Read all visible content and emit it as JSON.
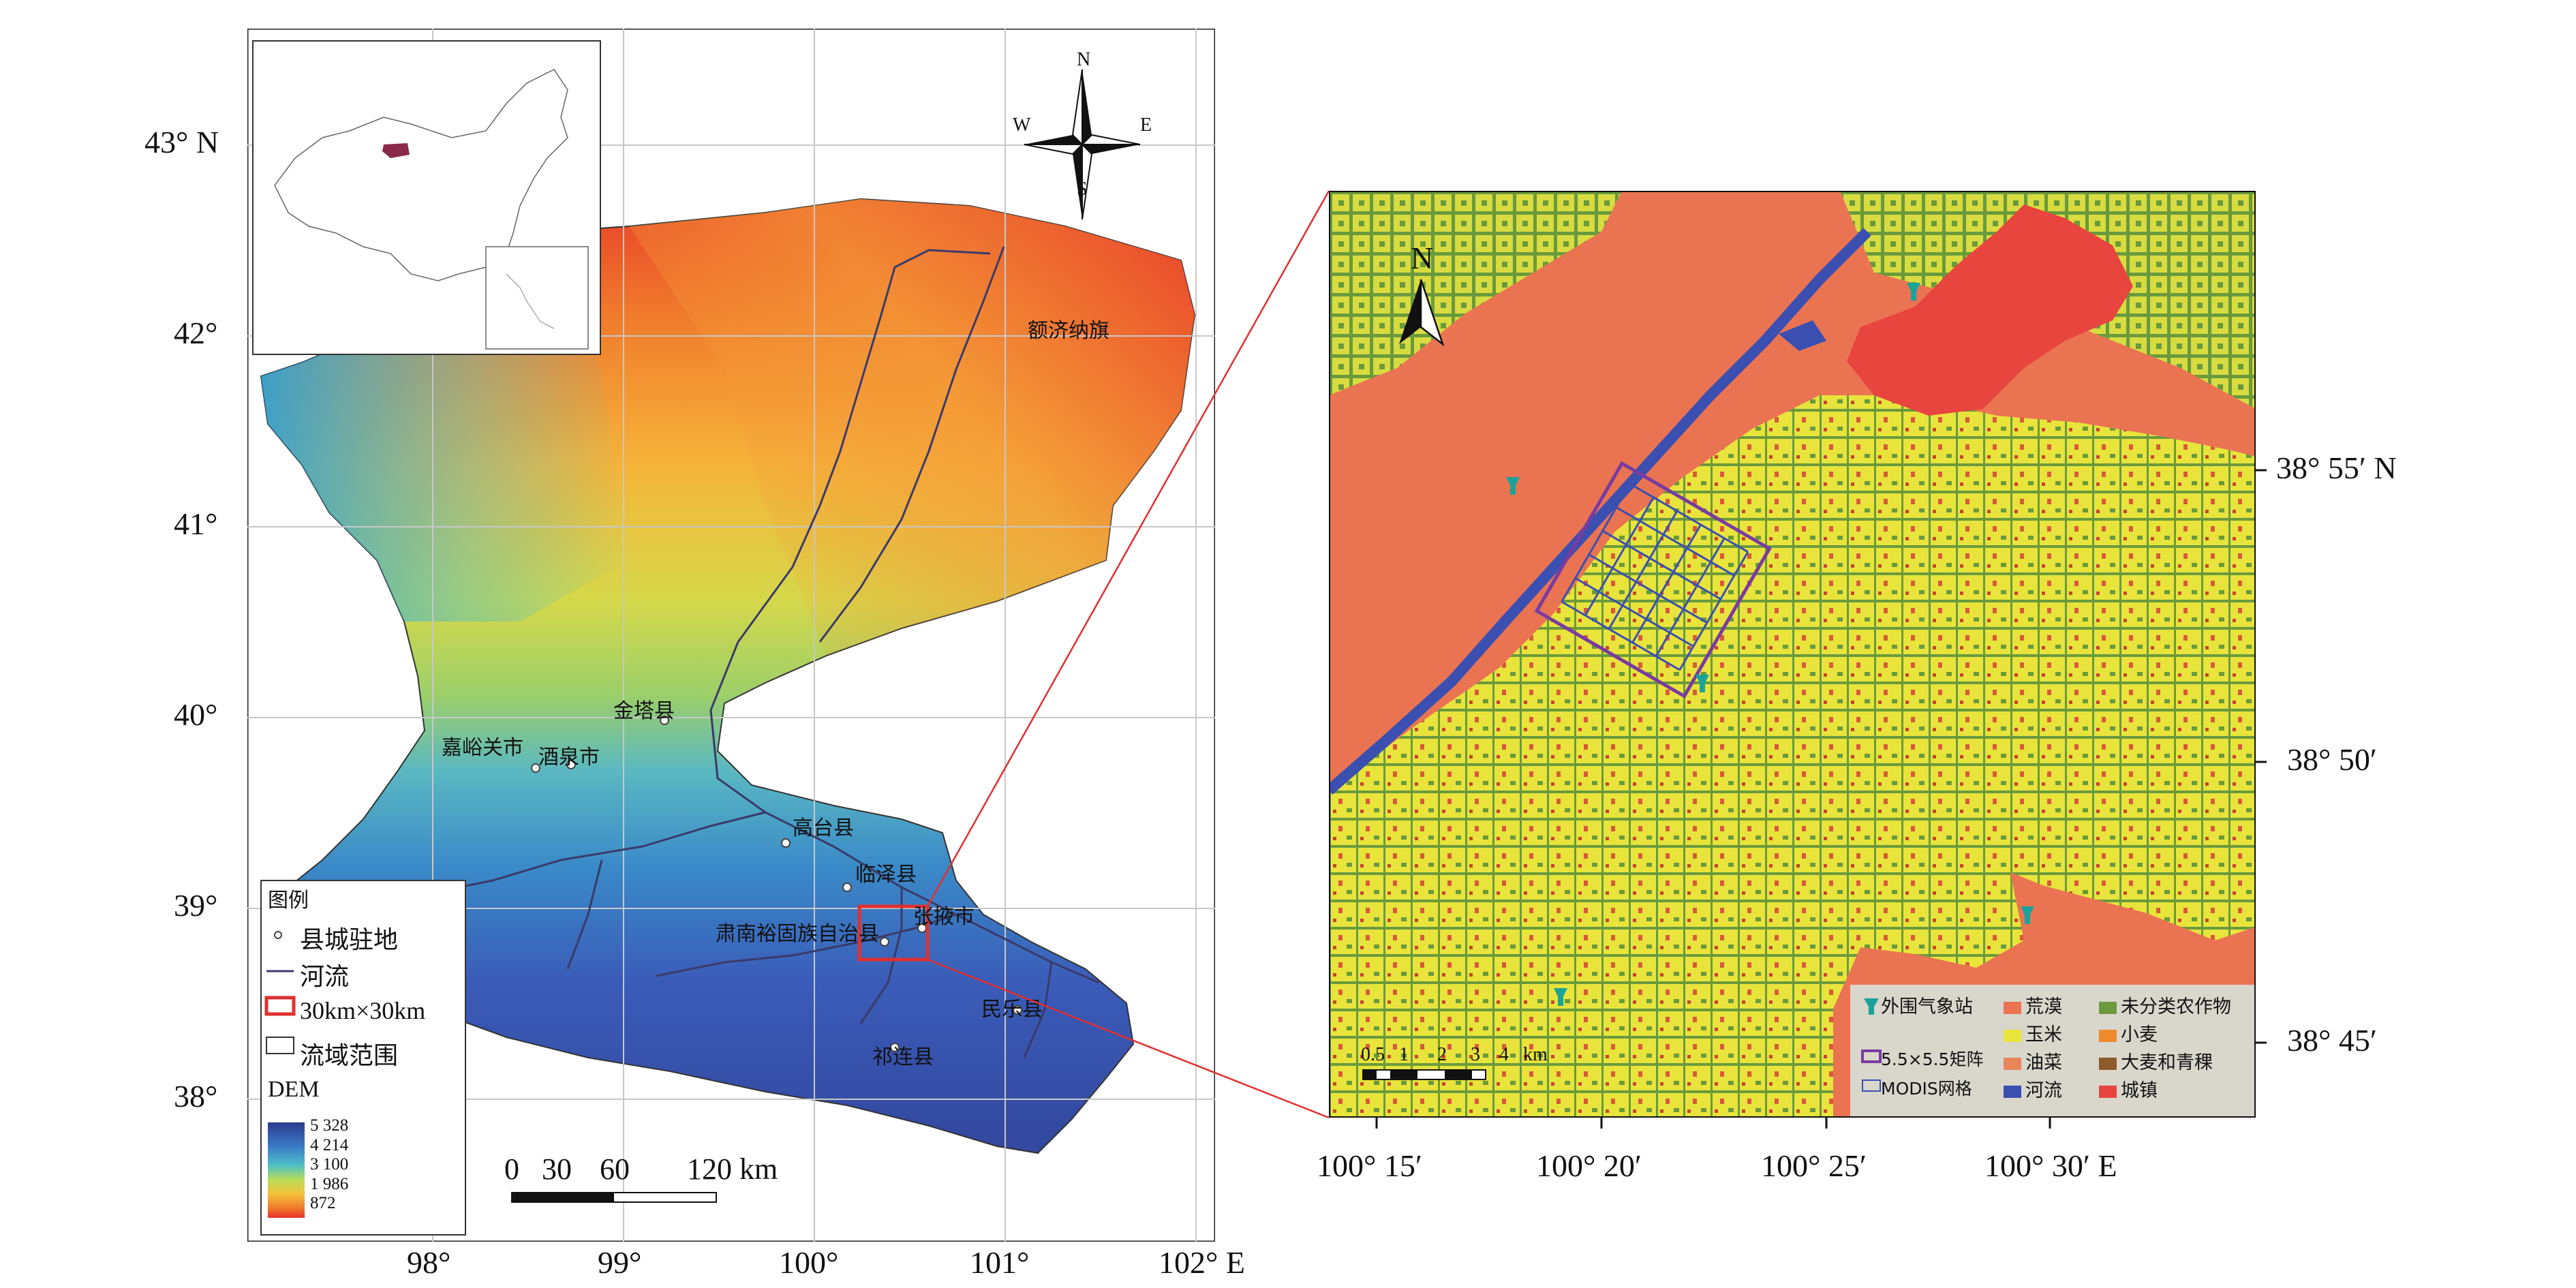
{
  "left_map": {
    "lat_labels": [
      "43° N",
      "42°",
      "41°",
      "40°",
      "39°",
      "38°"
    ],
    "lon_labels": [
      "98°",
      "99°",
      "100°",
      "101°",
      "102° E"
    ],
    "places": {
      "ejin": "额济纳旗",
      "jinta": "金塔县",
      "jiayuguan": "嘉峪关市",
      "jiuquan": "酒泉市",
      "gaotai": "高台县",
      "linze": "临泽县",
      "zhangye": "张掖市",
      "sunan": "肃南裕固族自治县",
      "minle": "民乐县",
      "qilian": "祁连县"
    },
    "legend": {
      "title": "图例",
      "county_seat": "县城驻地",
      "river": "河流",
      "box": "30km×30km",
      "basin": "流域范围",
      "dem_title": "DEM",
      "dem_values": [
        "5 328",
        "4 214",
        "3 100",
        "1 986",
        "872"
      ]
    },
    "scale_bar": {
      "labels": [
        "0",
        "30",
        "60",
        "120 km"
      ]
    },
    "compass": {
      "n": "N",
      "s": "S",
      "e": "E",
      "w": "W"
    }
  },
  "right_map": {
    "north": "N",
    "lat_labels": [
      "38° 55′ N",
      "38° 50′",
      "38° 45′"
    ],
    "lon_labels": [
      "100° 15′",
      "100° 20′",
      "100° 25′",
      "100° 30′ E"
    ],
    "scale_bar": {
      "labels": [
        "0.5",
        "1",
        "2",
        "3",
        "4",
        "km"
      ]
    },
    "legend": {
      "station": "外围气象站",
      "matrix": "5.5×5.5矩阵",
      "modis": "MODIS网格",
      "desert": "荒漠",
      "maize": "玉米",
      "rapeseed": "油菜",
      "river": "河流",
      "unclassified": "未分类农作物",
      "wheat": "小麦",
      "barley": "大麦和青稞",
      "town": "城镇"
    },
    "colors": {
      "desert": "#ea7452",
      "maize": "#e8e43c",
      "rapeseed": "#e8865a",
      "river": "#3b4fb0",
      "unclassified": "#6a9a3c",
      "wheat": "#f08a2a",
      "barley": "#8e5a2a",
      "town": "#e8453f",
      "station": "#1aa39a",
      "matrix": "#7a3aa0"
    }
  }
}
